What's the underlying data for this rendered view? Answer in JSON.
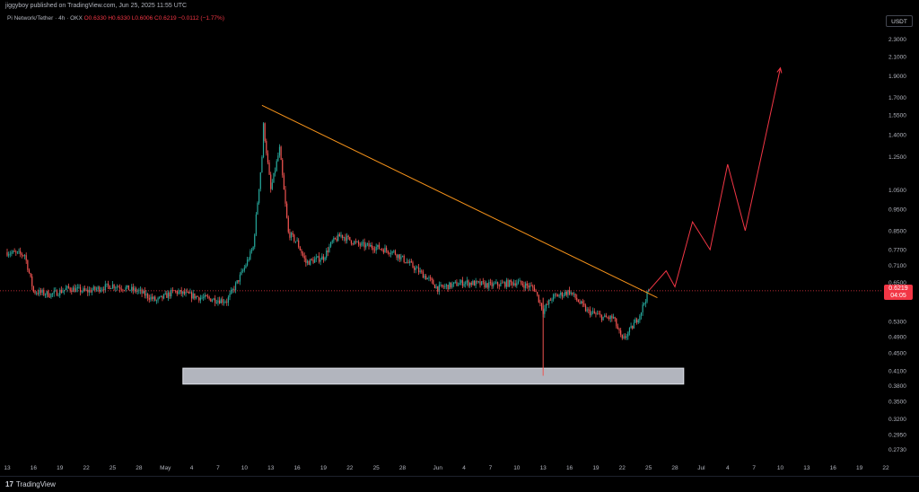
{
  "header": {
    "publish_line": "jiggyboy published on TradingView.com, Jun 25, 2025 11:55 UTC",
    "symbol": "Pi Network/Tether · 4h · OKX",
    "ohlc": "O0.6330 H0.6330 L0.6006 C0.6219 −0.0112 (−1.77%)",
    "currency": "USDT"
  },
  "price_tag": {
    "price": "0.6219",
    "countdown": "04:05"
  },
  "footer": {
    "logo_glyph": "17",
    "logo_text": "TradingView"
  },
  "colors": {
    "up": "#26a69a",
    "down": "#ef5350",
    "trendline": "#f7931a",
    "projection": "#f23645",
    "zone_fill": "#b2b5be",
    "price_line": "#f23645"
  },
  "chart_data": {
    "type": "candlestick",
    "title": "",
    "y_scale": "log",
    "ylim": [
      0.255,
      2.45
    ],
    "y_ticks": [
      "2.3000",
      "2.1000",
      "1.9000",
      "1.7000",
      "1.5500",
      "1.4000",
      "1.2500",
      "1.0500",
      "0.9500",
      "0.8500",
      "0.7700",
      "0.7100",
      "0.6500",
      "0.5300",
      "0.4900",
      "0.4500",
      "0.4100",
      "0.3800",
      "0.3500",
      "0.3200",
      "0.2950",
      "0.2730"
    ],
    "x_ticks": [
      "13",
      "16",
      "19",
      "22",
      "25",
      "28",
      "May",
      "4",
      "7",
      "10",
      "13",
      "16",
      "19",
      "22",
      "25",
      "28",
      "Jun",
      "4",
      "7",
      "10",
      "13",
      "16",
      "19",
      "22",
      "25",
      "28",
      "Jul",
      "4",
      "7",
      "10",
      "13",
      "16",
      "19",
      "22"
    ],
    "x_range_days": [
      "2025-04-13",
      "2025-07-22"
    ],
    "last_price": 0.6219,
    "price_path": [
      [
        "2025-04-13",
        0.76
      ],
      [
        "2025-04-15",
        0.75
      ],
      [
        "2025-04-16",
        0.62
      ],
      [
        "2025-04-18",
        0.61
      ],
      [
        "2025-04-20",
        0.63
      ],
      [
        "2025-04-22",
        0.62
      ],
      [
        "2025-04-25",
        0.64
      ],
      [
        "2025-04-28",
        0.62
      ],
      [
        "2025-04-30",
        0.59
      ],
      [
        "2025-05-02",
        0.62
      ],
      [
        "2025-05-05",
        0.6
      ],
      [
        "2025-05-08",
        0.59
      ],
      [
        "2025-05-09",
        0.64
      ],
      [
        "2025-05-10",
        0.7
      ],
      [
        "2025-05-11",
        0.78
      ],
      [
        "2025-05-12",
        1.25
      ],
      [
        "2025-05-12",
        1.57
      ],
      [
        "2025-05-13",
        1.05
      ],
      [
        "2025-05-14",
        1.3
      ],
      [
        "2025-05-15",
        0.84
      ],
      [
        "2025-05-16",
        0.8
      ],
      [
        "2025-05-17",
        0.72
      ],
      [
        "2025-05-19",
        0.74
      ],
      [
        "2025-05-20",
        0.8
      ],
      [
        "2025-05-21",
        0.83
      ],
      [
        "2025-05-23",
        0.79
      ],
      [
        "2025-05-25",
        0.78
      ],
      [
        "2025-05-27",
        0.76
      ],
      [
        "2025-05-29",
        0.71
      ],
      [
        "2025-05-31",
        0.66
      ],
      [
        "2025-06-01",
        0.63
      ],
      [
        "2025-06-04",
        0.65
      ],
      [
        "2025-06-07",
        0.64
      ],
      [
        "2025-06-10",
        0.65
      ],
      [
        "2025-06-12",
        0.63
      ],
      [
        "2025-06-13",
        0.56
      ],
      [
        "2025-06-14",
        0.6
      ],
      [
        "2025-06-16",
        0.62
      ],
      [
        "2025-06-18",
        0.56
      ],
      [
        "2025-06-20",
        0.54
      ],
      [
        "2025-06-21",
        0.54
      ],
      [
        "2025-06-22",
        0.48
      ],
      [
        "2025-06-23",
        0.51
      ],
      [
        "2025-06-24",
        0.55
      ],
      [
        "2025-06-25",
        0.6219
      ]
    ],
    "wick_low": {
      "date": "2025-06-13",
      "low": 0.4
    },
    "trendline": {
      "from": [
        "2025-05-12",
        1.63
      ],
      "to": [
        "2025-06-26",
        0.6
      ]
    },
    "demand_zone": {
      "from": "2025-05-03",
      "to": "2025-06-29",
      "low": 0.383,
      "high": 0.416
    },
    "projection": [
      [
        "2025-06-25",
        0.6219
      ],
      [
        "2025-06-27",
        0.69
      ],
      [
        "2025-06-28",
        0.635
      ],
      [
        "2025-06-30",
        0.89
      ],
      [
        "2025-07-02",
        0.77
      ],
      [
        "2025-07-04",
        1.2
      ],
      [
        "2025-07-06",
        0.85
      ],
      [
        "2025-07-10",
        1.98
      ]
    ]
  }
}
